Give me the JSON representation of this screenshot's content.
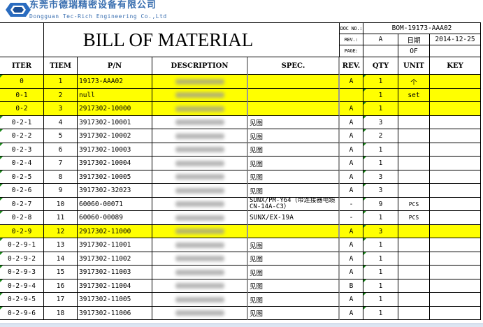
{
  "company": {
    "name_cn": "东莞市德瑞精密设备有限公司",
    "name_en": "Dongguan Tec-Rich Engineering Co.,Ltd"
  },
  "title": "BILL OF MATERIAL",
  "doc": {
    "doc_no_label": "DOC NO.:",
    "doc_no": "BOM-19173-AAA02",
    "rev_label": "REV.:",
    "rev": "A",
    "date_label": "日期",
    "date": "2014-12-25",
    "page_label": "PAGE:",
    "page": "",
    "of_label": "OF",
    "of": ""
  },
  "columns": [
    "ITER",
    "TIEM",
    "P/N",
    "DESCRIPTION",
    "SPEC.",
    "REV.",
    "QTY",
    "UNIT",
    "KEY"
  ],
  "highlight_color": "#ffff00",
  "rows": [
    {
      "iter": "0",
      "item": "1",
      "pn": "19173-AAA02",
      "spec": "",
      "rev": "A",
      "qty": "1",
      "unit": "个",
      "key": "",
      "hl": true
    },
    {
      "iter": "0-1",
      "item": "2",
      "pn": "null",
      "spec": "",
      "rev": "",
      "qty": "1",
      "unit": "set",
      "key": "",
      "hl": true
    },
    {
      "iter": "0-2",
      "item": "3",
      "pn": "2917302-10000",
      "spec": "",
      "rev": "A",
      "qty": "1",
      "unit": "",
      "key": "",
      "hl": true
    },
    {
      "iter": "0-2-1",
      "item": "4",
      "pn": "3917302-10001",
      "spec": "见图",
      "rev": "A",
      "qty": "3",
      "unit": "",
      "key": ""
    },
    {
      "iter": "0-2-2",
      "item": "5",
      "pn": "3917302-10002",
      "spec": "见图",
      "rev": "A",
      "qty": "2",
      "unit": "",
      "key": ""
    },
    {
      "iter": "0-2-3",
      "item": "6",
      "pn": "3917302-10003",
      "spec": "见图",
      "rev": "A",
      "qty": "1",
      "unit": "",
      "key": ""
    },
    {
      "iter": "0-2-4",
      "item": "7",
      "pn": "3917302-10004",
      "spec": "见图",
      "rev": "A",
      "qty": "1",
      "unit": "",
      "key": ""
    },
    {
      "iter": "0-2-5",
      "item": "8",
      "pn": "3917302-10005",
      "spec": "见图",
      "rev": "A",
      "qty": "3",
      "unit": "",
      "key": ""
    },
    {
      "iter": "0-2-6",
      "item": "9",
      "pn": "3917302-32023",
      "spec": "见图",
      "rev": "A",
      "qty": "3",
      "unit": "",
      "key": ""
    },
    {
      "iter": "0-2-7",
      "item": "10",
      "pn": "60060-00071",
      "spec": "SUNX/PM-Y64（带连接器电缆CN-14A-C3）",
      "rev": "-",
      "qty": "9",
      "unit": "PCS",
      "key": ""
    },
    {
      "iter": "0-2-8",
      "item": "11",
      "pn": "60060-00089",
      "spec": "SUNX/EX-19A",
      "rev": "-",
      "qty": "1",
      "unit": "PCS",
      "key": ""
    },
    {
      "iter": "0-2-9",
      "item": "12",
      "pn": "2917302-11000",
      "spec": "",
      "rev": "A",
      "qty": "3",
      "unit": "",
      "key": "",
      "hl": true
    },
    {
      "iter": "0-2-9-1",
      "item": "13",
      "pn": "3917302-11001",
      "spec": "见图",
      "rev": "A",
      "qty": "1",
      "unit": "",
      "key": ""
    },
    {
      "iter": "0-2-9-2",
      "item": "14",
      "pn": "3917302-11002",
      "spec": "见图",
      "rev": "A",
      "qty": "1",
      "unit": "",
      "key": ""
    },
    {
      "iter": "0-2-9-3",
      "item": "15",
      "pn": "3917302-11003",
      "spec": "见图",
      "rev": "A",
      "qty": "1",
      "unit": "",
      "key": ""
    },
    {
      "iter": "0-2-9-4",
      "item": "16",
      "pn": "3917302-11004",
      "spec": "见图",
      "rev": "B",
      "qty": "1",
      "unit": "",
      "key": ""
    },
    {
      "iter": "0-2-9-5",
      "item": "17",
      "pn": "3917302-11005",
      "spec": "见图",
      "rev": "A",
      "qty": "1",
      "unit": "",
      "key": ""
    },
    {
      "iter": "0-2-9-6",
      "item": "18",
      "pn": "3917302-11006",
      "spec": "见图",
      "rev": "A",
      "qty": "1",
      "unit": "",
      "key": ""
    }
  ]
}
